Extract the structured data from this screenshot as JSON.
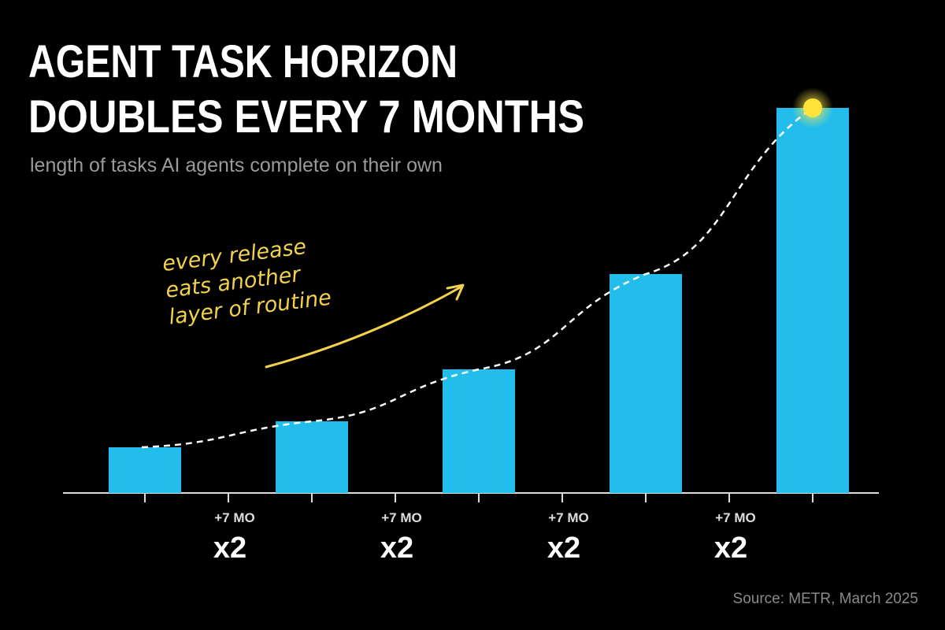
{
  "chart_data": {
    "type": "bar",
    "title": [
      "AGENT TASK HORIZON",
      "DOUBLES EVERY 7 MONTHS"
    ],
    "subtitle": "length of tasks AI agents complete on their own",
    "categories": [
      null,
      null,
      null,
      null,
      null
    ],
    "values": [
      58,
      91,
      157,
      278,
      489
    ],
    "color": "#22bdea",
    "ylim": [
      0,
      500
    ],
    "trend_line": true,
    "note": [
      "every release",
      "eats another",
      "layer of routine"
    ],
    "steps": [
      {
        "period": "+7 MO",
        "factor": "x2"
      },
      {
        "period": "+7 MO",
        "factor": "x2"
      },
      {
        "period": "+7 MO",
        "factor": "x2"
      },
      {
        "period": "+7 MO",
        "factor": "x2"
      }
    ],
    "source": "Source: METR, March 2025"
  }
}
